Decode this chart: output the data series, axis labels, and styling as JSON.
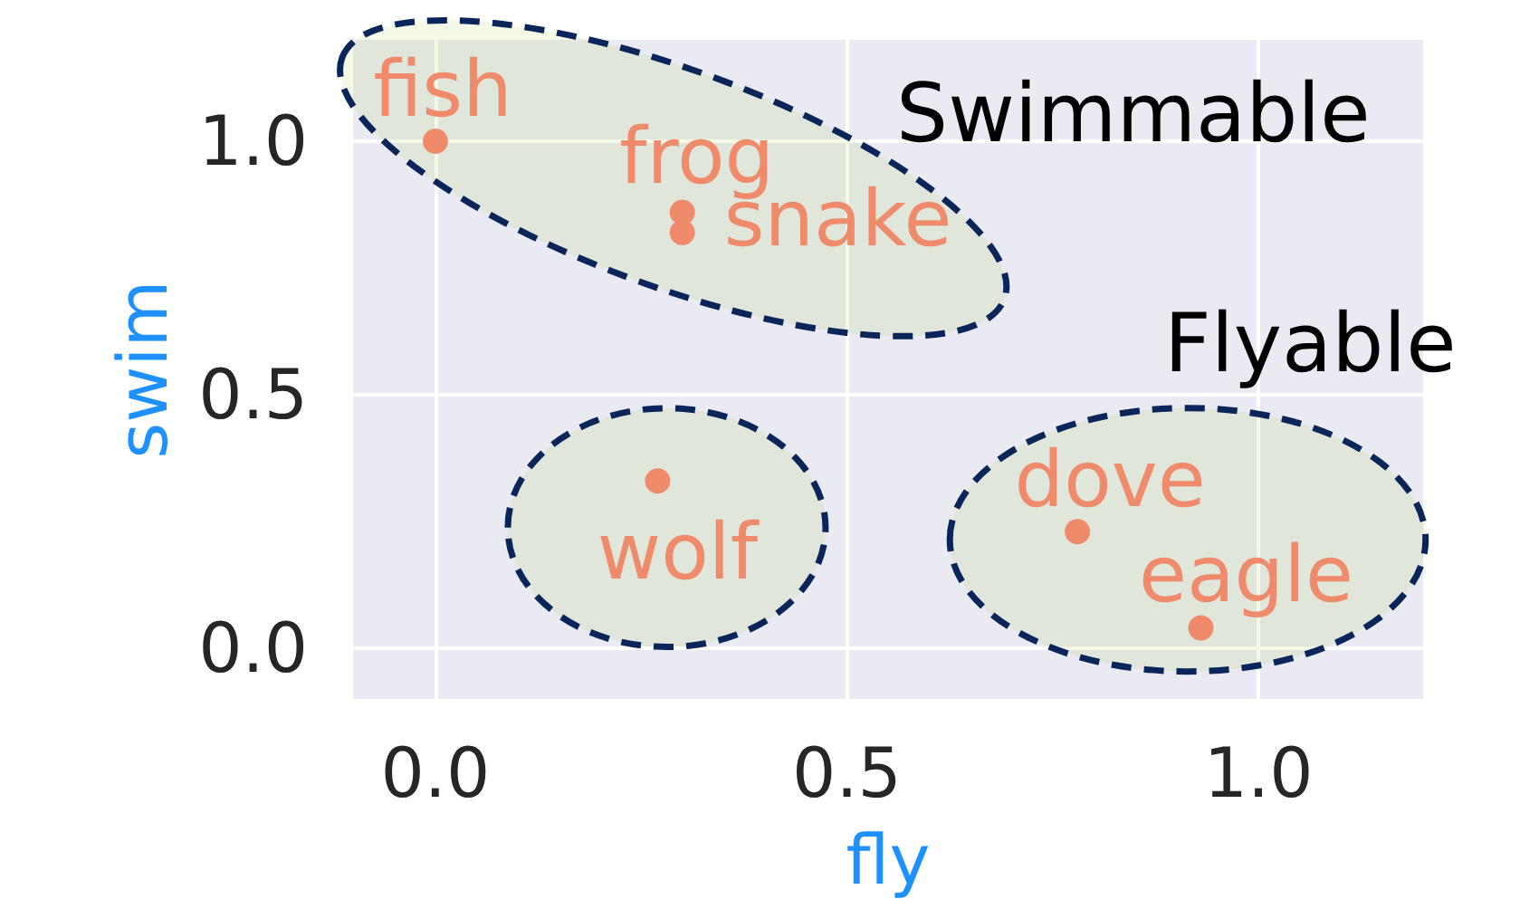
{
  "chart_data": {
    "type": "scatter",
    "xlabel": "fly",
    "ylabel": "swim",
    "x": [
      0,
      0.3,
      0.3,
      0.27,
      0.78,
      0.93
    ],
    "values": [
      1,
      0.86,
      0.82,
      0.33,
      0.23,
      0.04
    ],
    "color": "#ef8a6b",
    "marker": "circle",
    "xlim": [
      -0.1,
      1.2
    ],
    "ylim": [
      -0.1,
      1.2
    ],
    "xticks": [
      {
        "value": 0,
        "label": "0.0"
      },
      0.5,
      {
        "value": 1,
        "label": "1.0"
      }
    ],
    "yticks": [
      {
        "value": 0,
        "label": "0.0"
      },
      0.5,
      {
        "value": 1,
        "label": "1.0"
      }
    ],
    "grid": true,
    "annotations": [
      {
        "text": "fish",
        "x": 0,
        "y": 1
      },
      {
        "text": "frog",
        "x": 0.3,
        "y": 0.86
      },
      {
        "text": "snake",
        "x": 0.3,
        "y": 0.82
      },
      {
        "text": "wolf",
        "x": 0.27,
        "y": 0.33
      },
      {
        "text": "dove",
        "x": 0.78,
        "y": 0.23
      },
      {
        "text": "eagle",
        "x": 0.93,
        "y": 0.04
      },
      "Swimmable",
      "Flyable"
    ]
  }
}
